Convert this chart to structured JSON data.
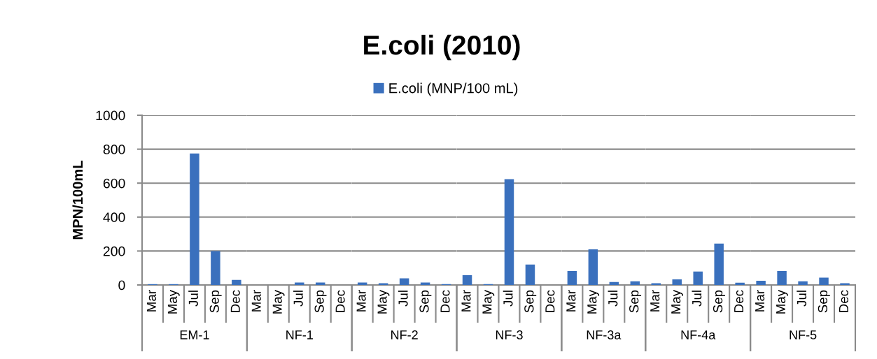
{
  "chart_data": [
    {
      "type": "bar",
      "ylabel": "MPN/100mL",
      "xlabel": "EM-1",
      "categories": [
        "Mar",
        "May",
        "Jul",
        "Sep",
        "Dec"
      ],
      "series": [
        {
          "name": "E.coli (MNP/100 mL)",
          "color": "#3a70bd",
          "values": [
            5,
            5,
            775,
            200,
            30
          ]
        }
      ],
      "ylim": [
        0,
        1000
      ],
      "yticks": [
        0,
        200,
        400,
        600,
        800,
        1000
      ],
      "grid": "y",
      "legend": "top"
    },
    {
      "type": "bar",
      "xlabel": "NF-1",
      "categories": [
        "Mar",
        "May",
        "Jul",
        "Sep",
        "Dec"
      ],
      "series": [
        {
          "color": "#3a70bd",
          "values": [
            null,
            null,
            14,
            14,
            null
          ]
        }
      ],
      "ylim": [
        0,
        1000
      ],
      "yticks": [
        0,
        200,
        400,
        600,
        800,
        1000
      ],
      "grid": "y",
      "tick_labels": "x"
    },
    {
      "type": "bar",
      "title": "E.coli (2010)",
      "xlabel": "NF-2",
      "categories": [
        "Mar",
        "May",
        "Jul",
        "Sep",
        "Dec"
      ],
      "series": [
        {
          "color": "#3a70bd",
          "values": [
            14,
            10,
            39,
            14,
            5
          ]
        }
      ],
      "ylim": [
        0,
        1000
      ],
      "yticks": [
        0,
        200,
        400,
        600,
        800,
        1000
      ],
      "grid": "y",
      "tick_labels": "x"
    },
    {
      "type": "bar",
      "xlabel": "NF-3",
      "categories": [
        "Mar",
        "May",
        "Jul",
        "Sep",
        "Dec"
      ],
      "series": [
        {
          "color": "#3a70bd",
          "values": [
            58,
            5,
            623,
            120,
            null
          ]
        }
      ],
      "ylim": [
        0,
        1000
      ],
      "yticks": [
        0,
        200,
        400,
        600,
        800,
        1000
      ],
      "grid": "y",
      "tick_labels": "x"
    },
    {
      "type": "bar",
      "xlabel": "NF-3a",
      "categories": [
        "Mar",
        "May",
        "Jul",
        "Sep"
      ],
      "series": [
        {
          "color": "#3a70bd",
          "values": [
            82,
            210,
            17,
            22
          ]
        }
      ],
      "ylim": [
        0,
        1000
      ],
      "yticks": [
        0,
        200,
        400,
        600,
        800,
        1000
      ],
      "grid": "y",
      "tick_labels": "x"
    },
    {
      "type": "bar",
      "xlabel": "NF-4a",
      "categories": [
        "Mar",
        "May",
        "Jul",
        "Sep",
        "Dec"
      ],
      "series": [
        {
          "color": "#3a70bd",
          "values": [
            10,
            33,
            79,
            244,
            13
          ]
        }
      ],
      "ylim": [
        0,
        1000
      ],
      "yticks": [
        0,
        200,
        400,
        600,
        800,
        1000
      ],
      "grid": "y",
      "tick_labels": "x"
    },
    {
      "type": "bar",
      "xlabel": "NF-5",
      "categories": [
        "Mar",
        "May",
        "Jul",
        "Sep",
        "Dec"
      ],
      "series": [
        {
          "color": "#3a70bd",
          "values": [
            25,
            82,
            22,
            43,
            10
          ]
        }
      ],
      "ylim": [
        0,
        1000
      ],
      "yticks": [
        0,
        200,
        400,
        600,
        800,
        1000
      ],
      "grid": "y",
      "tick_labels": "x"
    }
  ]
}
